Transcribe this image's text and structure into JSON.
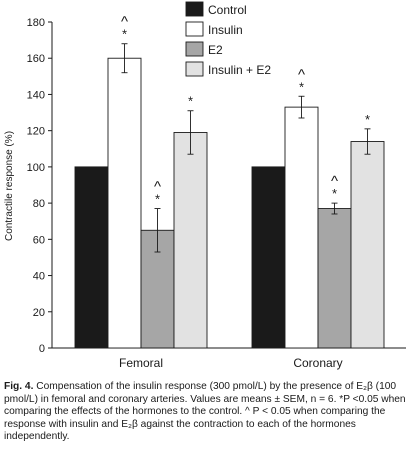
{
  "chart_data": {
    "type": "bar",
    "ylabel": "Contractile response (%)",
    "ylim": [
      0,
      180
    ],
    "yticks": [
      0,
      20,
      40,
      60,
      80,
      100,
      120,
      140,
      160,
      180
    ],
    "categories": [
      "Femoral",
      "Coronary"
    ],
    "legend_position": "top-right",
    "series": [
      {
        "name": "Control",
        "color": "#1a1a1a",
        "values": [
          100,
          100
        ],
        "errors": [
          0,
          0
        ],
        "marks": [
          "",
          ""
        ]
      },
      {
        "name": "Insulin",
        "color": "#ffffff",
        "values": [
          160,
          133
        ],
        "errors": [
          8,
          6
        ],
        "marks": [
          "^*",
          "^*"
        ]
      },
      {
        "name": "E2",
        "color": "#a6a6a6",
        "values": [
          65,
          77
        ],
        "errors": [
          12,
          3
        ],
        "marks": [
          "^*",
          "^*"
        ]
      },
      {
        "name": "Insulin + E2",
        "color": "#e2e2e2",
        "values": [
          119,
          114
        ],
        "errors": [
          12,
          7
        ],
        "marks": [
          "*",
          "*"
        ]
      }
    ]
  },
  "caption": {
    "label": "Fig. 4.",
    "text": "Compensation of the insulin response (300 pmol/L) by the presence of E₂β (100 pmol/L) in femoral and coronary arteries. Values are means ± SEM, n = 6. *P <0.05 when comparing the effects of the hormones to the control. ^ P < 0.05 when comparing the response with insulin and E₂β against the contraction to each of the hormones independently."
  }
}
